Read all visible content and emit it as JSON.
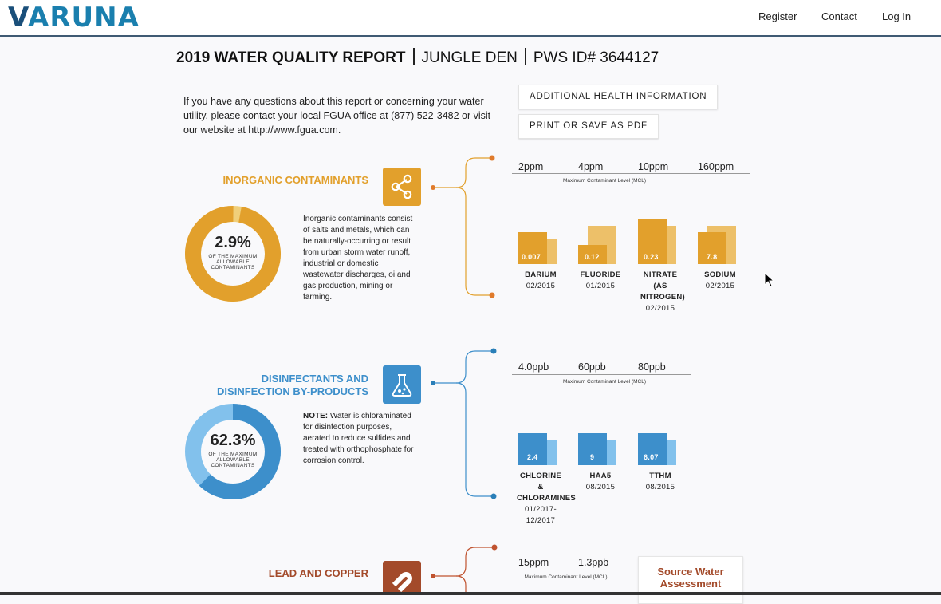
{
  "header": {
    "logo": "VARUNA",
    "nav": [
      "Register",
      "Contact",
      "Log In"
    ]
  },
  "report": {
    "title": "2019 WATER QUALITY REPORT",
    "utility": "JUNGLE DEN",
    "pws": "PWS ID# 3644127"
  },
  "intro": "If you have any questions about this report or concerning your water utility, please contact your local FGUA office at (877) 522-3482 or visit our website at http://www.fgua.com.",
  "buttons": {
    "health": "ADDITIONAL HEALTH INFORMATION",
    "print": "PRINT OR SAVE AS PDF"
  },
  "colors": {
    "inorganic": "#e2a02c",
    "disinfect": "#3d8fcb",
    "lead": "#a34a2a"
  },
  "sections": {
    "inorganic": {
      "title": "INORGANIC CONTAMINANTS",
      "icon": "share-nodes-icon",
      "percent": "2.9%",
      "percent_value": 2.9,
      "percent_caption": "OF THE MAXIMUM ALLOWABLE CONTAMINANTS",
      "description": "Inorganic contaminants consist of salts and metals, which can be naturally-occurring or result from urban storm water runoff, industrial or domestic wastewater discharges, oi and gas production, mining or farming.",
      "mcl_caption": "Maximum Contaminant Level (MCL)",
      "mcl": [
        "2ppm",
        "4ppm",
        "10ppm",
        "160ppm"
      ],
      "items": [
        {
          "name": "BARIUM",
          "date": "02/2015",
          "value": "0.007"
        },
        {
          "name": "FLUORIDE",
          "date": "01/2015",
          "value": "0.12"
        },
        {
          "name": "NITRATE (AS NITROGEN)",
          "date": "02/2015",
          "value": "0.23"
        },
        {
          "name": "SODIUM",
          "date": "02/2015",
          "value": "7.8"
        }
      ]
    },
    "disinfect": {
      "title_line1": "DISINFECTANTS AND",
      "title_line2": "DISINFECTION BY-PRODUCTS",
      "icon": "flask-icon",
      "percent": "62.3%",
      "percent_value": 62.3,
      "percent_caption": "OF THE MAXIMUM ALLOWABLE CONTAMINANTS",
      "note_label": "NOTE:",
      "description": "Water is chloraminated for disinfection purposes, aerated to reduce sulfides and treated with orthophosphate for corrosion control.",
      "mcl_caption": "Maximum Contaminant Level (MCL)",
      "mcl": [
        "4.0ppb",
        "60ppb",
        "80ppb"
      ],
      "items": [
        {
          "name": "CHLORINE & CHLORAMINES",
          "date": "01/2017-12/2017",
          "value": "2.4"
        },
        {
          "name": "HAA5",
          "date": "08/2015",
          "value": "9"
        },
        {
          "name": "TTHM",
          "date": "08/2015",
          "value": "6.07"
        }
      ]
    },
    "lead": {
      "title": "LEAD AND COPPER",
      "icon": "magnet-icon",
      "mcl_caption": "Maximum Contaminant Level (MCL)",
      "mcl": [
        "15ppm",
        "1.3ppb"
      ],
      "source_button": "Source Water Assessment"
    }
  }
}
